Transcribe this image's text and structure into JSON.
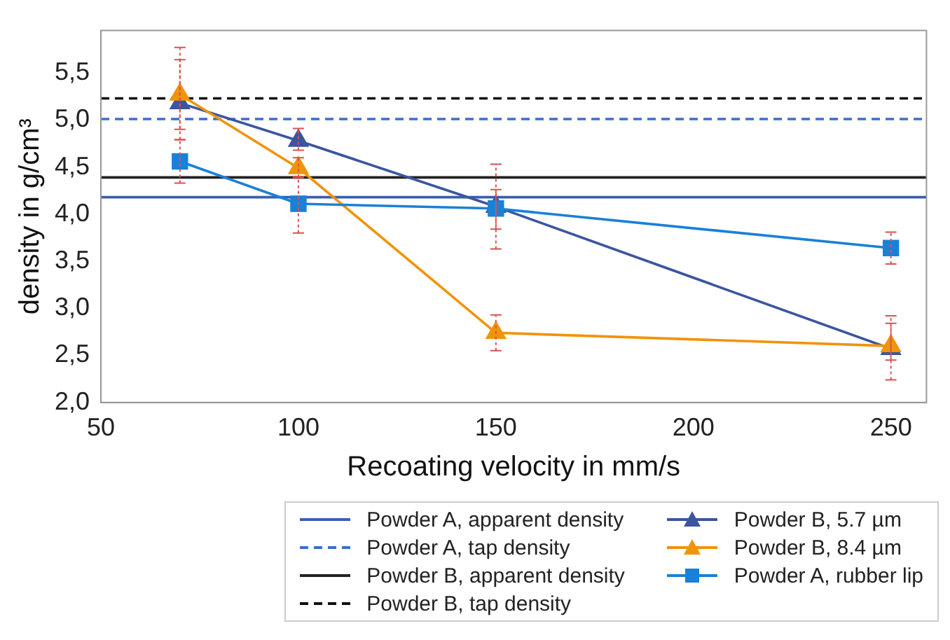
{
  "chart_data": {
    "type": "line",
    "xlabel": "Recoating velocity in mm/s",
    "ylabel": "density in g/cm³",
    "xlim": [
      50,
      259
    ],
    "xticks": [
      50,
      100,
      150,
      200,
      250
    ],
    "ylim": [
      2.0,
      5.95
    ],
    "yticks": [
      {
        "value": 2,
        "label": "2,0"
      },
      {
        "value": 2.5,
        "label": "2,5"
      },
      {
        "value": 3,
        "label": "3,0"
      },
      {
        "value": 3.5,
        "label": "3,5"
      },
      {
        "value": 4,
        "label": "4,0"
      },
      {
        "value": 4.5,
        "label": "4,5"
      },
      {
        "value": 5,
        "label": "5,0"
      },
      {
        "value": 5.5,
        "label": "5,5"
      }
    ],
    "x": [
      70,
      100,
      150,
      250
    ],
    "legend": "bottom",
    "line_style": "solid",
    "ref_lines": [
      {
        "axis": "y",
        "value": 4.18,
        "label": "Powder A, apparent density",
        "color": "#3a5fb0",
        "line_style": "solid"
      },
      {
        "axis": "y",
        "value": 5.01,
        "label": "Powder A, tap density",
        "color": "#3a6fd0",
        "line_style": "dashed"
      },
      {
        "axis": "y",
        "value": 4.39,
        "label": "Powder B, apparent density",
        "color": "#222222",
        "line_style": "solid"
      },
      {
        "axis": "y",
        "value": 5.23,
        "label": "Powder B, tap density",
        "color": "#111111",
        "line_style": "dashed"
      }
    ],
    "series": [
      {
        "name": "Powder B, 5.7 µm",
        "color": "#3b55a0",
        "marker": "triangle",
        "values": [
          5.18,
          4.78,
          4.08,
          2.57
        ],
        "errors": [
          [
            4.9,
            5.64
          ],
          [
            4.68,
            4.91
          ],
          [
            3.84,
            4.26
          ],
          [
            2.24,
            2.84
          ]
        ]
      },
      {
        "name": "Powder B, 8.4 µm",
        "color": "#f0940a",
        "marker": "triangle",
        "values": [
          5.27,
          4.49,
          2.74,
          2.6
        ],
        "errors": [
          [
            4.79,
            5.77
          ],
          [
            4.39,
            4.6
          ],
          [
            2.55,
            2.93
          ],
          [
            2.45,
            2.92
          ]
        ]
      },
      {
        "name": "Powder A, rubber lip",
        "color": "#1a80d8",
        "marker": "square",
        "values": [
          4.56,
          4.11,
          4.06,
          3.64
        ],
        "errors": [
          [
            4.33,
            4.79
          ],
          [
            3.8,
            4.4
          ],
          [
            3.63,
            4.53
          ],
          [
            3.47,
            3.81
          ]
        ]
      }
    ]
  }
}
